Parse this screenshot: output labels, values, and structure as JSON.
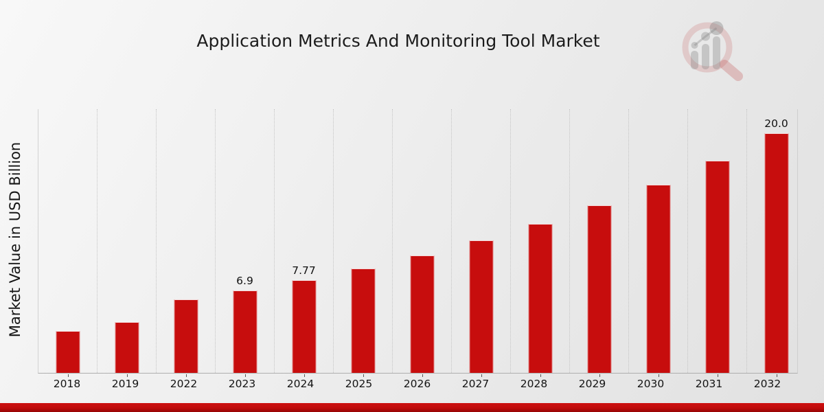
{
  "title": "Application Metrics And Monitoring Tool Market",
  "colors": {
    "bar": "#c70d0d",
    "grid": "#c4c4c4",
    "axis": "#aeaeae",
    "text": "#1c1c1c",
    "footer_band_top": "#cd1010",
    "footer_band_bottom": "#950404",
    "logo_ring": "rgba(196,90,90,0.22)",
    "logo_gray": "rgba(125,125,125,0.32)"
  },
  "icons": {
    "logo": "magnifier-bar-chart-logo"
  },
  "chart_data": {
    "type": "bar",
    "title": "Application Metrics And Monitoring Tool Market",
    "xlabel": "",
    "ylabel": "Market Value in USD Billion",
    "categories": [
      "2018",
      "2019",
      "2022",
      "2023",
      "2024",
      "2025",
      "2026",
      "2027",
      "2028",
      "2029",
      "2030",
      "2031",
      "2032"
    ],
    "values": [
      3.5,
      4.27,
      6.13,
      6.9,
      7.77,
      8.74,
      9.83,
      11.06,
      12.44,
      13.99,
      15.74,
      17.71,
      20.0
    ],
    "bar_labels": [
      "",
      "",
      "",
      "6.9",
      "7.77",
      "",
      "",
      "",
      "",
      "",
      "",
      "",
      "20.0"
    ],
    "ylim": [
      0,
      22
    ],
    "grid": "vertical-dashed",
    "legend": "none",
    "bar_color": "#c70d0d"
  }
}
